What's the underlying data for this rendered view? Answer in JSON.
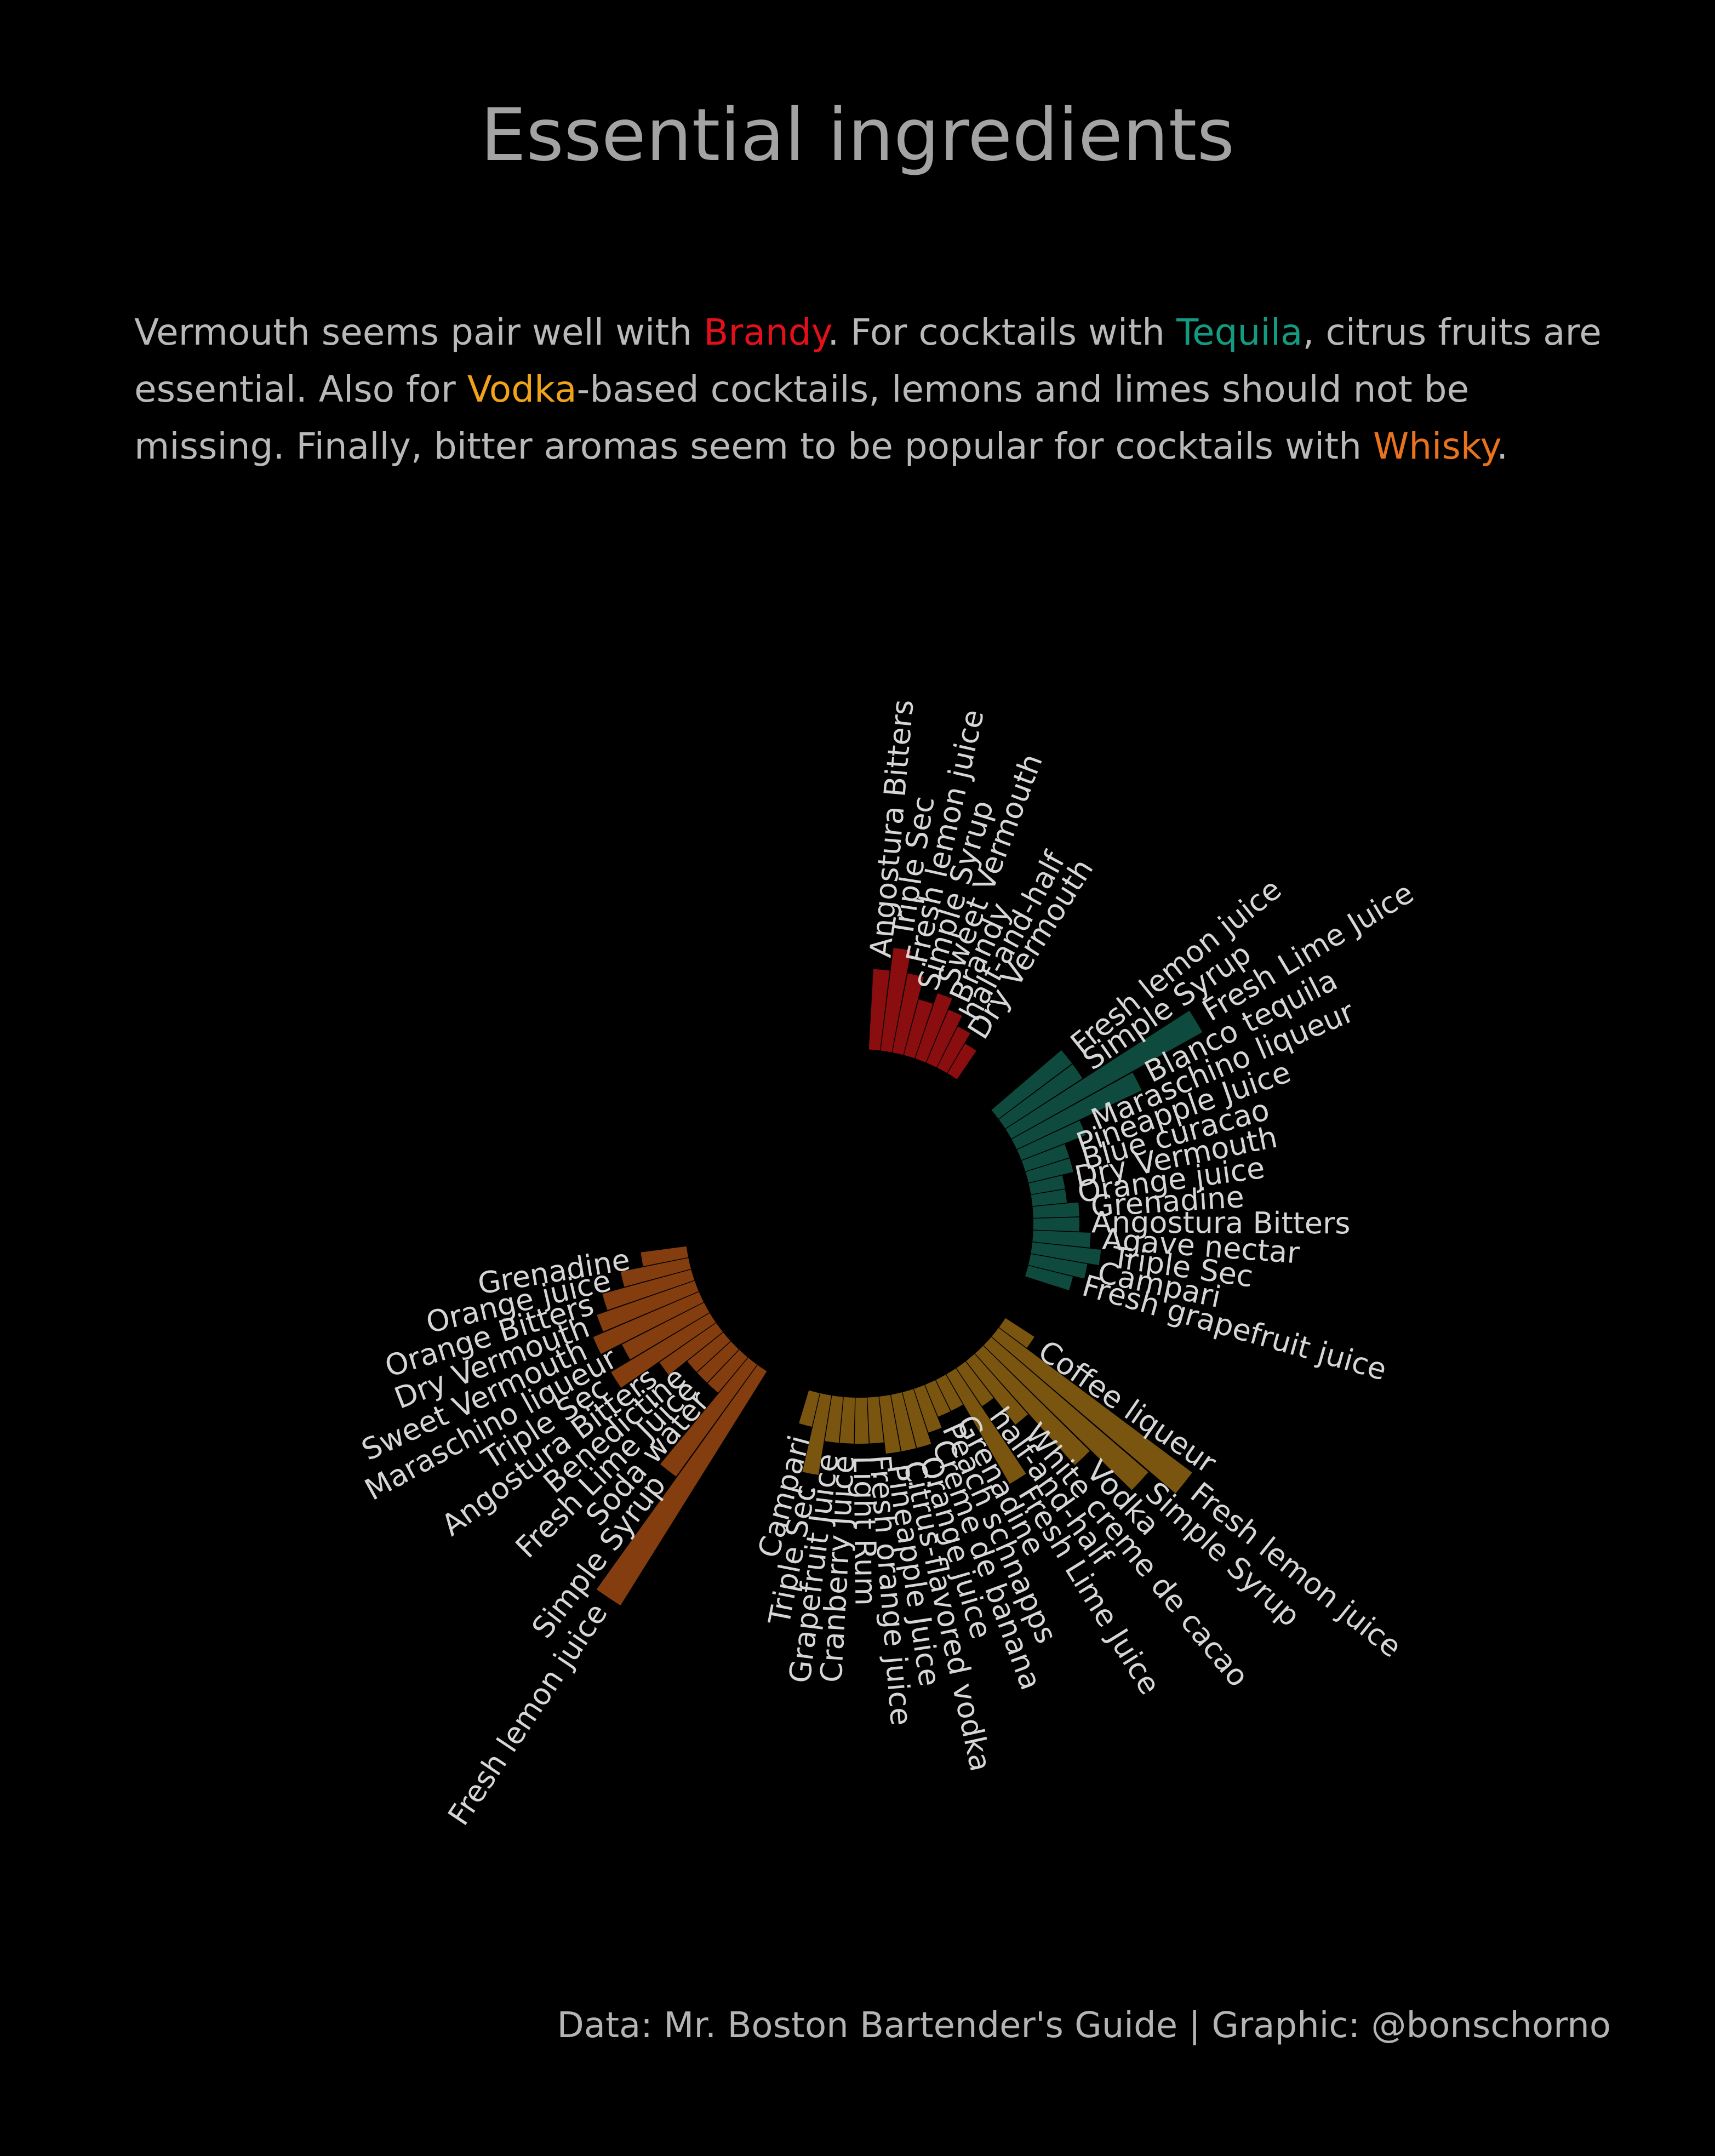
{
  "title": "Essential ingredients",
  "subtitle": {
    "p1": "Vermouth seems pair well with ",
    "brandy": "Brandy",
    "p2": ". For cocktails with ",
    "tequila": "Tequila",
    "p3": ", citrus fruits are essential. Also for ",
    "vodka": "Vodka",
    "p4": "-based cocktails, lemons and limes should not be missing. Finally, bitter aromas seem to be popular for cocktails with ",
    "whisky": "Whisky",
    "p5": "."
  },
  "caption": "Data: Mr. Boston Bartender's Guide | Graphic: @bonschorno",
  "colors": {
    "background": "#000000",
    "brandy": "#8a0d0f",
    "tequila": "#0f4a3e",
    "vodka": "#7a5510",
    "whisky": "#843d0e",
    "highlight_brandy": "#e3101b",
    "highlight_tequila": "#159a82",
    "highlight_vodka": "#f0a21b",
    "highlight_whisky": "#e9731d"
  },
  "chart_data": {
    "type": "bar",
    "layout": "circular",
    "series": [
      {
        "name": "Brandy",
        "color": "#8a0d0f",
        "categories": [
          "Angostura Bitters",
          "Triple Sec",
          "Fresh lemon juice",
          "Simple Syrup",
          "Sweet Vermouth",
          "Brandy",
          "half-and-half",
          "Dry Vermouth"
        ],
        "values": [
          7,
          9,
          7,
          5,
          6,
          5,
          4,
          3
        ]
      },
      {
        "name": "Tequila",
        "color": "#0f4a3e",
        "categories": [
          "Fresh lemon juice",
          "Simple Syrup",
          "Fresh Lime Juice",
          "Blanco tequila",
          "Maraschino liqueur",
          "Pineapple Juice",
          "Blue curacao",
          "Dry Vermouth",
          "Orange juice",
          "Grenadine",
          "Angostura Bitters",
          "Agave nectar",
          "Triple Sec",
          "Campari",
          "Fresh grapefruit juice"
        ],
        "values": [
          8,
          8,
          19,
          12,
          6,
          4,
          4,
          3,
          3,
          4,
          4,
          5,
          6,
          5,
          4
        ]
      },
      {
        "name": "Vodka",
        "color": "#7a5510",
        "categories": [
          "Coffee liqueur",
          "Fresh lemon juice",
          "Simple Syrup",
          "Vodka",
          "White creme de cacao",
          "half-and-half",
          "Fresh Lime Juice",
          "Grenadine",
          "Peach schnapps",
          "Creme de banana",
          "Orange juice",
          "Citrus-flavored vodka",
          "Pineapple Juice",
          "Fresh orange juice",
          "Light Rum",
          "Cranberry Juice",
          "Grapefruit Juice",
          "Triple Sec",
          "Campari"
        ],
        "values": [
          3,
          21,
          18,
          13,
          7,
          4,
          11,
          3,
          3,
          4,
          5,
          5,
          5,
          4,
          4,
          4,
          4,
          7,
          3
        ]
      },
      {
        "name": "Whisky",
        "color": "#843d0e",
        "categories": [
          "Fresh lemon juice",
          "Simple Syrup",
          "Soda water",
          "Fresh Lime Juice",
          "Benedictine",
          "Angostura Bitters",
          "Triple Sec",
          "Maraschino liqueur",
          "Sweet Vermouth",
          "Dry Vermouth",
          "Orange Bitters",
          "Orange juice",
          "Grenadine"
        ],
        "values": [
          24,
          12,
          4,
          4,
          4,
          6,
          10,
          8,
          10,
          9,
          8,
          6,
          4
        ]
      }
    ]
  }
}
